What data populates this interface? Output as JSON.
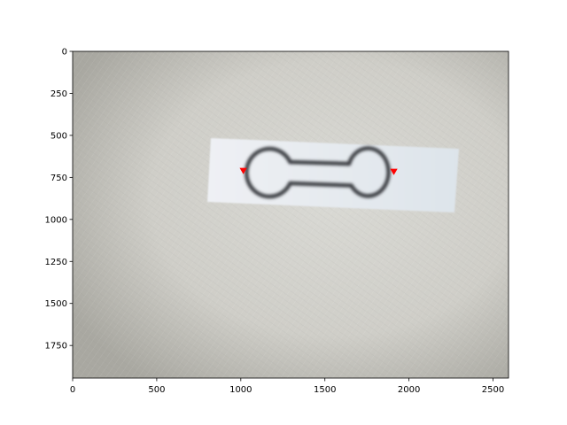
{
  "chart_data": {
    "type": "scatter",
    "title": "",
    "xlabel": "",
    "ylabel": "",
    "xlim": [
      0,
      2592
    ],
    "ylim": [
      1944,
      0
    ],
    "y_inverted": true,
    "grid": false,
    "background": "photograph of a white paper strip with a printed dumbbell-shaped outline on a grey fabric surface",
    "x_ticks": [
      0,
      500,
      1000,
      1500,
      2000,
      2500
    ],
    "y_ticks": [
      0,
      250,
      500,
      750,
      1000,
      1250,
      1500,
      1750
    ],
    "series": [
      {
        "marker": "triangle-down",
        "color": "#ff0000",
        "points": [
          {
            "x": 1015,
            "y": 710
          },
          {
            "x": 1910,
            "y": 715
          }
        ]
      }
    ]
  }
}
